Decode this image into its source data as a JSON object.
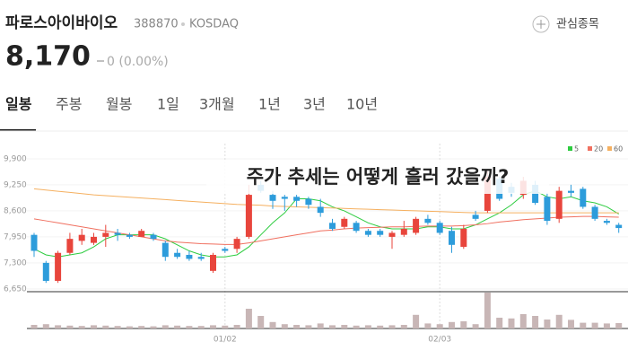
{
  "header": {
    "name": "파로스아이바이오",
    "code": "388870",
    "market": "KOSDAQ",
    "watch": "관심종목"
  },
  "price": {
    "value": "8,170",
    "change": "0 (0.00%)"
  },
  "tabs": [
    "일봉",
    "주봉",
    "월봉",
    "1일",
    "3개월",
    "1년",
    "3년",
    "10년"
  ],
  "overlay": "주가 추세는 어떻게 흘러 갔을까?",
  "chart_data": {
    "type": "candlestick",
    "categories": [
      null,
      null,
      null,
      null,
      null,
      null,
      null,
      null,
      null,
      null,
      null,
      null,
      null,
      null,
      null,
      null,
      "01/02",
      null,
      null,
      null,
      null,
      null,
      null,
      null,
      null,
      null,
      null,
      null,
      null,
      null,
      null,
      null,
      null,
      null,
      "02/03",
      null,
      null,
      null,
      null,
      null,
      null,
      null,
      null,
      null,
      null,
      null,
      null,
      null,
      null,
      null
    ],
    "open": [
      8000,
      7300,
      6850,
      7550,
      7850,
      7800,
      7950,
      8050,
      8000,
      7950,
      8000,
      7800,
      7550,
      7500,
      7450,
      7100,
      7650,
      7650,
      7950,
      9250,
      9000,
      8950,
      8950,
      8900,
      8700,
      8300,
      8200,
      8300,
      8100,
      8100,
      7950,
      8000,
      8050,
      8400,
      8300,
      8100,
      7700,
      8500,
      8600,
      9400,
      9200,
      9000,
      9250,
      8950,
      8400,
      9100,
      9150,
      8700,
      8350,
      8250
    ],
    "high": [
      8050,
      7350,
      7600,
      8050,
      8150,
      8050,
      8250,
      8150,
      8050,
      8150,
      8050,
      7850,
      7650,
      7600,
      7550,
      7550,
      7700,
      7950,
      9250,
      9350,
      9100,
      9000,
      9000,
      8950,
      8900,
      8400,
      8450,
      8350,
      8150,
      8150,
      8100,
      8350,
      8450,
      8500,
      8350,
      8200,
      8250,
      8600,
      9600,
      9450,
      9300,
      9450,
      9350,
      9050,
      9200,
      9250,
      9200,
      8750,
      8400,
      8300
    ],
    "low": [
      7450,
      6800,
      6800,
      7500,
      7750,
      7750,
      7700,
      7850,
      7900,
      7950,
      7850,
      7350,
      7400,
      7350,
      7350,
      7050,
      7550,
      7550,
      7900,
      9050,
      8650,
      8600,
      8700,
      8650,
      8450,
      8100,
      8150,
      8050,
      7950,
      7950,
      7650,
      7950,
      8000,
      8250,
      8000,
      7550,
      7650,
      8350,
      8550,
      8850,
      8950,
      8900,
      8750,
      8250,
      8300,
      8950,
      8650,
      8350,
      8250,
      8050
    ],
    "close": [
      7600,
      6850,
      7550,
      7900,
      8000,
      7950,
      8050,
      8000,
      7950,
      8100,
      7900,
      7450,
      7450,
      7400,
      7400,
      7500,
      7600,
      7900,
      9000,
      9100,
      8850,
      8900,
      8850,
      8750,
      8550,
      8150,
      8400,
      8100,
      8000,
      8000,
      8050,
      8150,
      8400,
      8300,
      8050,
      7750,
      8150,
      8400,
      9450,
      8900,
      9050,
      9350,
      8800,
      8350,
      9100,
      9050,
      8700,
      8400,
      8300,
      8170
    ],
    "up_color": "#e8453c",
    "down_color": "#2d9cdb",
    "series": [
      {
        "name": "5",
        "color": "#2ecc40",
        "values": [
          7650,
          7500,
          7450,
          7500,
          7550,
          7700,
          7900,
          8000,
          8000,
          8000,
          8000,
          7900,
          7750,
          7600,
          7500,
          7450,
          7450,
          7500,
          7700,
          8000,
          8300,
          8550,
          8900,
          8900,
          8850,
          8700,
          8600,
          8450,
          8300,
          8200,
          8150,
          8150,
          8150,
          8200,
          8200,
          8150,
          8150,
          8250,
          8400,
          8550,
          8750,
          9000,
          9100,
          8950,
          8900,
          8950,
          8850,
          8800,
          8700,
          8520
        ]
      },
      {
        "name": "20",
        "color": "#f07060",
        "values": [
          8400,
          8350,
          8300,
          8250,
          8200,
          8150,
          8100,
          8050,
          8000,
          7950,
          7900,
          7850,
          7820,
          7800,
          7780,
          7770,
          7760,
          7760,
          7800,
          7850,
          7900,
          7950,
          8000,
          8050,
          8100,
          8120,
          8150,
          8170,
          8180,
          8190,
          8200,
          8200,
          8210,
          8220,
          8220,
          8220,
          8230,
          8250,
          8280,
          8320,
          8350,
          8380,
          8400,
          8420,
          8440,
          8450,
          8460,
          8460,
          8450,
          8440
        ]
      },
      {
        "name": "60",
        "color": "#f5b060",
        "values": [
          9150,
          9120,
          9090,
          9060,
          9030,
          9000,
          8980,
          8960,
          8940,
          8920,
          8900,
          8880,
          8860,
          8840,
          8820,
          8800,
          8780,
          8760,
          8750,
          8740,
          8720,
          8710,
          8700,
          8690,
          8680,
          8670,
          8660,
          8650,
          8640,
          8630,
          8620,
          8610,
          8600,
          8590,
          8580,
          8570,
          8560,
          8550,
          8550,
          8550,
          8550,
          8550,
          8550,
          8550,
          8550,
          8550,
          8550,
          8550,
          8550,
          8550
        ]
      }
    ],
    "volume": [
      10,
      12,
      9,
      8,
      7,
      9,
      8,
      7,
      6,
      7,
      6,
      9,
      8,
      7,
      7,
      9,
      8,
      10,
      55,
      35,
      18,
      12,
      10,
      9,
      14,
      9,
      10,
      8,
      9,
      8,
      9,
      10,
      38,
      14,
      12,
      18,
      20,
      12,
      100,
      30,
      28,
      40,
      35,
      25,
      38,
      24,
      16,
      16,
      14,
      15
    ],
    "volume_color": "#c8b6b6",
    "vlim": [
      0,
      100
    ],
    "ylim": [
      6580,
      10280
    ],
    "yticks": [
      {
        "value": 6650,
        "label": "6,650"
      },
      {
        "value": 7300,
        "label": "7,300"
      },
      {
        "value": 7950,
        "label": "7,950"
      },
      {
        "value": 8600,
        "label": "8,600"
      },
      {
        "value": 9250,
        "label": "9,250"
      },
      {
        "value": 9900,
        "label": "9,900"
      }
    ]
  }
}
